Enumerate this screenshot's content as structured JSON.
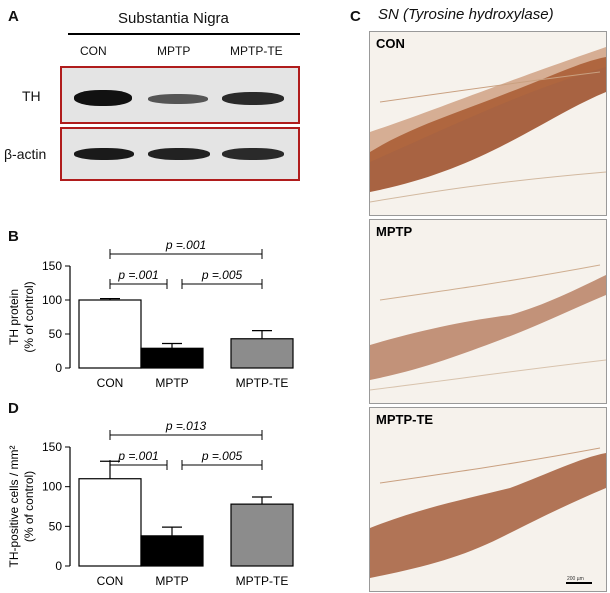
{
  "panels": {
    "a_letter": "A",
    "b_letter": "B",
    "c_letter": "C",
    "d_letter": "D"
  },
  "blot": {
    "region_title": "Substantia Nigra",
    "lanes": [
      "CON",
      "MPTP",
      "MPTP-TE"
    ],
    "rows": [
      "TH",
      "β-actin"
    ],
    "band_intensity": {
      "TH": [
        1.0,
        0.45,
        0.75
      ],
      "beta_actin": [
        0.95,
        0.85,
        0.8
      ]
    },
    "frame_color": "#b01c1c"
  },
  "histology": {
    "title": "SN (Tyrosine hydroxylase)",
    "panels": [
      "CON",
      "MPTP",
      "MPTP-TE"
    ],
    "scale_label": "200 µm",
    "stain_color": "#8a3a1a"
  },
  "chart_data": [
    {
      "type": "bar",
      "categories": [
        "CON",
        "MPTP",
        "MPTP-TE"
      ],
      "values": [
        100,
        29,
        43
      ],
      "errors": [
        2,
        7,
        12
      ],
      "colors": [
        "#ffffff",
        "#000000",
        "#8c8c8c"
      ],
      "ylabel": "TH protein",
      "ylabel2": "(% of control)",
      "ylim": [
        0,
        150
      ],
      "yticks": [
        0,
        50,
        100,
        150
      ],
      "comparisons": [
        {
          "from": 0,
          "to": 1,
          "p": "p =.001",
          "level": 1
        },
        {
          "from": 1,
          "to": 2,
          "p": "p =.005",
          "level": 1
        },
        {
          "from": 0,
          "to": 2,
          "p": "p =.001",
          "level": 2
        }
      ]
    },
    {
      "type": "bar",
      "categories": [
        "CON",
        "MPTP",
        "MPTP-TE"
      ],
      "values": [
        110,
        38,
        78
      ],
      "errors": [
        22,
        11,
        9
      ],
      "colors": [
        "#ffffff",
        "#000000",
        "#8c8c8c"
      ],
      "ylabel": "TH-positive cells / mm²",
      "ylabel2": "(% of control)",
      "ylim": [
        0,
        150
      ],
      "yticks": [
        0,
        50,
        100,
        150
      ],
      "comparisons": [
        {
          "from": 0,
          "to": 1,
          "p": "p =.001",
          "level": 1
        },
        {
          "from": 1,
          "to": 2,
          "p": "p =.005",
          "level": 1
        },
        {
          "from": 0,
          "to": 2,
          "p": "p =.013",
          "level": 2
        }
      ]
    }
  ]
}
